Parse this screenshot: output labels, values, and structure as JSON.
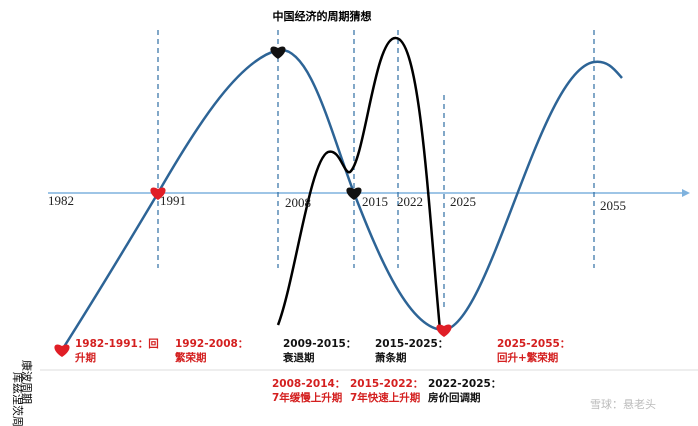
{
  "title": "中国经济的周期猜想",
  "years": [
    "1982",
    "1991",
    "2008",
    "2015",
    "2022",
    "2025",
    "2055"
  ],
  "cycle_labels": {
    "kondratiev": "康波周期",
    "kuznets": "库兹涅茨周期"
  },
  "kondratiev_phases": [
    {
      "lines": [
        "1982-1991：回",
        "升期"
      ],
      "color": "#d42020"
    },
    {
      "lines": [
        "1992-2008：",
        "繁荣期"
      ],
      "color": "#d42020"
    },
    {
      "lines": [
        "2009-2015：",
        "衰退期"
      ],
      "color": "#111111"
    },
    {
      "lines": [
        "2015-2025：",
        "萧条期"
      ],
      "color": "#111111"
    },
    {
      "lines": [
        "2025-2055：",
        "回升+繁荣期"
      ],
      "color": "#d42020"
    }
  ],
  "kuznets_phases": [
    {
      "lines": [
        "2008-2014：",
        "7年缓慢上升期"
      ],
      "color": "#d42020"
    },
    {
      "lines": [
        "2015-2022：",
        "7年快速上升期"
      ],
      "color": "#d42020"
    },
    {
      "lines": [
        "2022-2025：",
        "房价回调期"
      ],
      "color": "#111111"
    }
  ],
  "watermark": "雪球：悬老头"
}
